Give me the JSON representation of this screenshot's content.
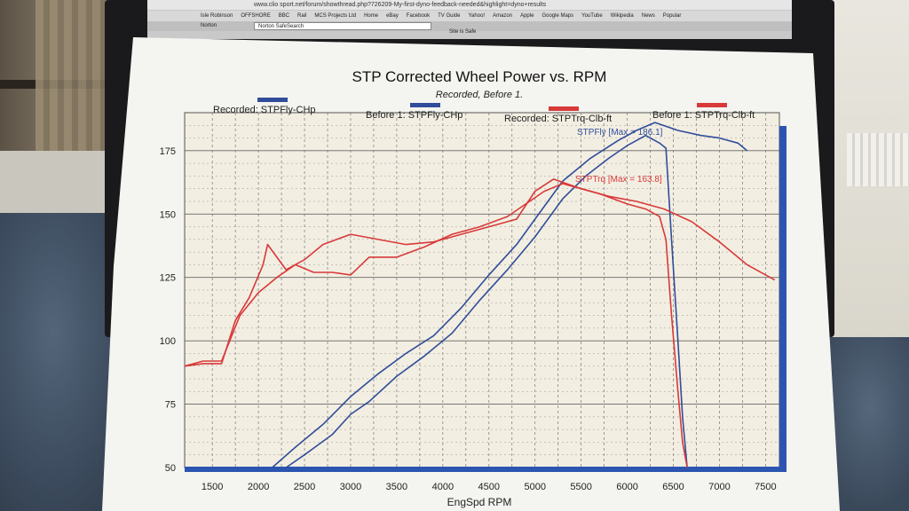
{
  "browser": {
    "url": "www.clio sport.net/forum/showthread.php?726209-My-first-dyno-feedback-needed&highlight=dyno+results",
    "bookmarks": [
      "Isle Robinson",
      "OFFSHORE",
      "BBC",
      "Rail",
      "MCS Projects Ltd",
      "Home",
      "eBay",
      "Facebook",
      "TV Guide",
      "Yahoo!",
      "Amazon",
      "Apple",
      "Google Maps",
      "YouTube",
      "Wikipedia",
      "News",
      "Popular"
    ],
    "norton_label": "Norton",
    "search_placeholder": "Norton SafeSearch",
    "safe_text": "Site is Safe"
  },
  "chart_data": {
    "type": "line",
    "title": "STP Corrected Wheel Power vs. RPM",
    "subtitle": "Recorded, Before 1.",
    "xlabel": "EngSpd RPM",
    "ylabel": "",
    "xlim": [
      1200,
      7650
    ],
    "ylim": [
      50,
      190
    ],
    "xticks": [
      1500,
      2000,
      2500,
      3000,
      3500,
      4000,
      4500,
      5000,
      5500,
      6000,
      6500,
      7000,
      7500
    ],
    "yticks": [
      50,
      75,
      100,
      125,
      150,
      175
    ],
    "grid": true,
    "legend_position": "top",
    "legend": [
      {
        "label": "Recorded: STPFly-CHp",
        "color": "#2f4d9a"
      },
      {
        "label": "Before 1: STPFly-CHp",
        "color": "#2f4d9a"
      },
      {
        "label": "Recorded: STPTrq-Clb-ft",
        "color": "#d83a3a"
      },
      {
        "label": "Before 1: STPTrq-Clb-ft",
        "color": "#d83a3a"
      }
    ],
    "annotations": [
      {
        "text": "STPFly [Max = 186.1]",
        "color": "#2f4d9a"
      },
      {
        "text": "STPTrq [Max = 163.8]",
        "color": "#d83a3a"
      }
    ],
    "series": [
      {
        "color": "#2f4d9a",
        "points": [
          [
            2150,
            50
          ],
          [
            2400,
            58
          ],
          [
            2700,
            67
          ],
          [
            3000,
            78
          ],
          [
            3300,
            87
          ],
          [
            3600,
            95
          ],
          [
            3900,
            102
          ],
          [
            4200,
            113
          ],
          [
            4500,
            126
          ],
          [
            4800,
            138
          ],
          [
            5000,
            148
          ],
          [
            5300,
            163
          ],
          [
            5600,
            172
          ],
          [
            5900,
            179
          ],
          [
            6100,
            183
          ],
          [
            6300,
            186.1
          ],
          [
            6550,
            183
          ],
          [
            6800,
            181
          ],
          [
            7000,
            180
          ],
          [
            7200,
            178
          ],
          [
            7300,
            175
          ]
        ]
      },
      {
        "color": "#2f4d9a",
        "points": [
          [
            2300,
            50
          ],
          [
            2500,
            55
          ],
          [
            2800,
            63
          ],
          [
            3000,
            71
          ],
          [
            3200,
            76
          ],
          [
            3500,
            86
          ],
          [
            3800,
            94
          ],
          [
            4100,
            103
          ],
          [
            4400,
            116
          ],
          [
            4700,
            128
          ],
          [
            5000,
            141
          ],
          [
            5300,
            156
          ],
          [
            5550,
            165
          ],
          [
            5800,
            172
          ],
          [
            6000,
            177
          ],
          [
            6200,
            181
          ],
          [
            6350,
            178
          ],
          [
            6420,
            176
          ],
          [
            6480,
            140
          ],
          [
            6550,
            100
          ],
          [
            6600,
            70
          ],
          [
            6650,
            50
          ]
        ]
      },
      {
        "color": "#d83a3a",
        "points": [
          [
            1200,
            90
          ],
          [
            1400,
            92
          ],
          [
            1600,
            92
          ],
          [
            1800,
            110
          ],
          [
            2000,
            119
          ],
          [
            2200,
            125
          ],
          [
            2400,
            130
          ],
          [
            2600,
            127
          ],
          [
            2800,
            127
          ],
          [
            3000,
            126
          ],
          [
            3200,
            133
          ],
          [
            3500,
            133
          ],
          [
            3800,
            137
          ],
          [
            4100,
            142
          ],
          [
            4400,
            145
          ],
          [
            4700,
            149
          ],
          [
            4900,
            154
          ],
          [
            5100,
            159
          ],
          [
            5300,
            162
          ],
          [
            5500,
            160
          ],
          [
            5700,
            158
          ],
          [
            6000,
            154
          ],
          [
            6200,
            152
          ],
          [
            6350,
            149
          ],
          [
            6420,
            140
          ],
          [
            6480,
            110
          ],
          [
            6550,
            80
          ],
          [
            6600,
            60
          ],
          [
            6650,
            50
          ]
        ]
      },
      {
        "color": "#d83a3a",
        "points": [
          [
            1200,
            90
          ],
          [
            1400,
            91
          ],
          [
            1600,
            91
          ],
          [
            1750,
            108
          ],
          [
            1900,
            117
          ],
          [
            2050,
            130
          ],
          [
            2100,
            138
          ],
          [
            2200,
            133
          ],
          [
            2300,
            128
          ],
          [
            2500,
            132
          ],
          [
            2700,
            138
          ],
          [
            3000,
            142
          ],
          [
            3300,
            140
          ],
          [
            3600,
            138
          ],
          [
            3900,
            139
          ],
          [
            4200,
            142
          ],
          [
            4500,
            145
          ],
          [
            4800,
            148
          ],
          [
            5000,
            159
          ],
          [
            5200,
            163.8
          ],
          [
            5500,
            160
          ],
          [
            5800,
            157
          ],
          [
            6100,
            155
          ],
          [
            6400,
            152
          ],
          [
            6700,
            147
          ],
          [
            7000,
            139
          ],
          [
            7300,
            130
          ],
          [
            7600,
            124
          ]
        ]
      }
    ]
  }
}
